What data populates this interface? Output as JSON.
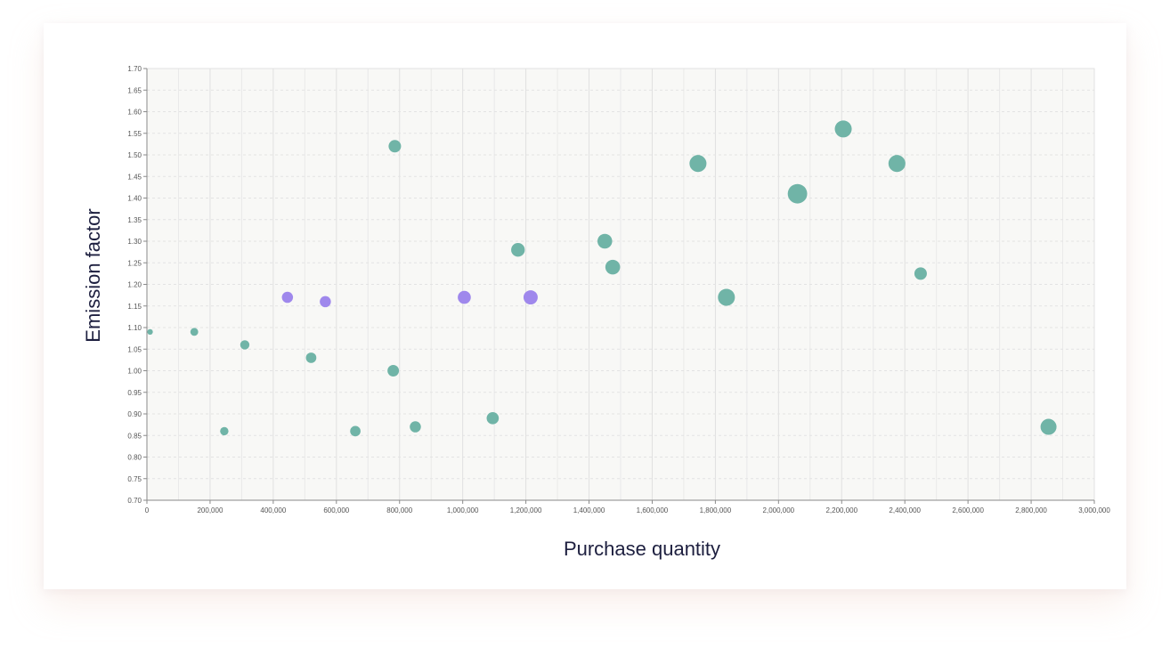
{
  "chart_data": {
    "type": "scatter",
    "xlabel": "Purchase quantity",
    "ylabel": "Emission factor",
    "xlim": [
      0,
      3000000
    ],
    "ylim": [
      0.7,
      1.7
    ],
    "x_ticks": [
      0,
      200000,
      400000,
      600000,
      800000,
      1000000,
      1200000,
      1400000,
      1600000,
      1800000,
      2000000,
      2200000,
      2400000,
      2600000,
      2800000,
      3000000
    ],
    "x_tick_labels": [
      "0",
      "200,000",
      "400,000",
      "600,000",
      "800,000",
      "1,000,000",
      "1,200,000",
      "1,400,000",
      "1,600,000",
      "1,800,000",
      "2,000,000",
      "2,200,000",
      "2,400,000",
      "2,600,000",
      "2,800,000",
      "3,000,000"
    ],
    "y_ticks": [
      0.7,
      0.75,
      0.8,
      0.85,
      0.9,
      0.95,
      1.0,
      1.05,
      1.1,
      1.15,
      1.2,
      1.25,
      1.3,
      1.35,
      1.4,
      1.45,
      1.5,
      1.55,
      1.6,
      1.65,
      1.7
    ],
    "y_tick_labels": [
      "0.70",
      "0.75",
      "0.80",
      "0.85",
      "0.90",
      "0.95",
      "1.00",
      "1.05",
      "1.10",
      "1.15",
      "1.20",
      "1.25",
      "1.30",
      "1.35",
      "1.40",
      "1.45",
      "1.50",
      "1.55",
      "1.60",
      "1.65",
      "1.70"
    ],
    "grid": true,
    "colors": {
      "teal": "#6db3a5",
      "purple": "#9d86ec"
    },
    "series": [
      {
        "color": "teal",
        "points": [
          {
            "x": 10000,
            "y": 1.09,
            "size": 0.2
          },
          {
            "x": 150000,
            "y": 1.09,
            "size": 0.4
          },
          {
            "x": 245000,
            "y": 0.86,
            "size": 0.45
          },
          {
            "x": 310000,
            "y": 1.06,
            "size": 0.55
          },
          {
            "x": 520000,
            "y": 1.03,
            "size": 0.7
          },
          {
            "x": 660000,
            "y": 0.86,
            "size": 0.7
          },
          {
            "x": 780000,
            "y": 1.0,
            "size": 0.85
          },
          {
            "x": 785000,
            "y": 1.52,
            "size": 1.0
          },
          {
            "x": 850000,
            "y": 0.87,
            "size": 0.8
          },
          {
            "x": 1095000,
            "y": 0.89,
            "size": 0.95
          },
          {
            "x": 1175000,
            "y": 1.28,
            "size": 1.2
          },
          {
            "x": 1450000,
            "y": 1.3,
            "size": 1.4
          },
          {
            "x": 1475000,
            "y": 1.24,
            "size": 1.4
          },
          {
            "x": 1745000,
            "y": 1.48,
            "size": 1.85
          },
          {
            "x": 1835000,
            "y": 1.17,
            "size": 2.9
          },
          {
            "x": 2060000,
            "y": 1.41,
            "size": 3.8
          },
          {
            "x": 2205000,
            "y": 1.56,
            "size": 1.85
          },
          {
            "x": 2375000,
            "y": 1.48,
            "size": 1.85
          },
          {
            "x": 2450000,
            "y": 1.225,
            "size": 1.0
          },
          {
            "x": 2855000,
            "y": 0.87,
            "size": 1.65
          }
        ]
      },
      {
        "color": "purple",
        "points": [
          {
            "x": 445000,
            "y": 1.17,
            "size": 0.8
          },
          {
            "x": 565000,
            "y": 1.16,
            "size": 0.8
          },
          {
            "x": 1005000,
            "y": 1.17,
            "size": 1.1
          },
          {
            "x": 1215000,
            "y": 1.17,
            "size": 1.3
          }
        ]
      }
    ]
  }
}
